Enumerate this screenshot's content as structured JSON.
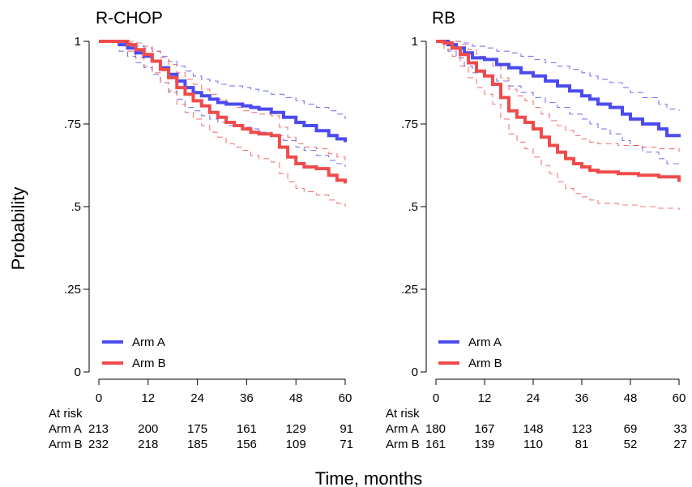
{
  "figure": {
    "ylabel": "Probability",
    "xlabel": "Time, months"
  },
  "chart_data": [
    {
      "type": "line",
      "title": "R-CHOP",
      "xlabel": "Time, months",
      "ylabel": "Probability",
      "xlim": [
        0,
        60
      ],
      "ylim": [
        0,
        1
      ],
      "xticks": [
        0,
        12,
        24,
        36,
        48,
        60
      ],
      "xtick_labels": [
        "0",
        "12",
        "24",
        "36",
        "48",
        "60"
      ],
      "yticks": [
        0,
        0.25,
        0.5,
        0.75,
        1
      ],
      "ytick_labels": [
        "0",
        ".25",
        ".5",
        ".75",
        "1"
      ],
      "grid": false,
      "legend": "bottom-left",
      "series": [
        {
          "name": "Arm A",
          "color": "#4b4bf0",
          "x": [
            0,
            5,
            7,
            9,
            11,
            13,
            15,
            17,
            19,
            21,
            23,
            25,
            27,
            29,
            31,
            33,
            35,
            37,
            39,
            42,
            45,
            48,
            50,
            53,
            56,
            58,
            60
          ],
          "y": [
            1.0,
            0.99,
            0.98,
            0.965,
            0.955,
            0.94,
            0.92,
            0.9,
            0.88,
            0.86,
            0.845,
            0.835,
            0.825,
            0.815,
            0.81,
            0.81,
            0.805,
            0.8,
            0.795,
            0.785,
            0.77,
            0.755,
            0.745,
            0.73,
            0.715,
            0.705,
            0.695
          ],
          "ci_lower": [
            1.0,
            0.97,
            0.955,
            0.935,
            0.92,
            0.9,
            0.875,
            0.85,
            0.825,
            0.8,
            0.79,
            0.775,
            0.765,
            0.755,
            0.745,
            0.745,
            0.74,
            0.735,
            0.725,
            0.715,
            0.7,
            0.68,
            0.67,
            0.655,
            0.64,
            0.63,
            0.62
          ],
          "ci_upper": [
            1.0,
            1.0,
            0.995,
            0.985,
            0.98,
            0.97,
            0.955,
            0.94,
            0.925,
            0.91,
            0.895,
            0.885,
            0.88,
            0.87,
            0.865,
            0.865,
            0.86,
            0.855,
            0.85,
            0.84,
            0.83,
            0.82,
            0.81,
            0.8,
            0.79,
            0.78,
            0.765
          ]
        },
        {
          "name": "Arm B",
          "color": "#f04b4b",
          "x": [
            0,
            5,
            7,
            9,
            11,
            13,
            15,
            17,
            19,
            21,
            23,
            25,
            27,
            29,
            31,
            33,
            35,
            37,
            39,
            42,
            44,
            46,
            48,
            50,
            53,
            56,
            58,
            60
          ],
          "y": [
            1.0,
            1.0,
            0.99,
            0.975,
            0.96,
            0.94,
            0.915,
            0.89,
            0.86,
            0.84,
            0.82,
            0.805,
            0.785,
            0.77,
            0.755,
            0.745,
            0.735,
            0.725,
            0.72,
            0.715,
            0.68,
            0.65,
            0.63,
            0.62,
            0.615,
            0.595,
            0.58,
            0.57
          ],
          "ci_lower": [
            1.0,
            0.99,
            0.97,
            0.95,
            0.925,
            0.905,
            0.875,
            0.845,
            0.81,
            0.785,
            0.765,
            0.745,
            0.725,
            0.71,
            0.69,
            0.68,
            0.67,
            0.655,
            0.645,
            0.635,
            0.6,
            0.575,
            0.555,
            0.545,
            0.535,
            0.52,
            0.51,
            0.5
          ],
          "ci_upper": [
            1.0,
            1.0,
            1.0,
            0.995,
            0.985,
            0.97,
            0.95,
            0.93,
            0.905,
            0.885,
            0.87,
            0.855,
            0.84,
            0.825,
            0.81,
            0.8,
            0.79,
            0.785,
            0.78,
            0.775,
            0.74,
            0.71,
            0.69,
            0.68,
            0.675,
            0.66,
            0.65,
            0.64
          ]
        }
      ],
      "at_risk": {
        "header": "At risk",
        "times": [
          0,
          12,
          24,
          36,
          48,
          60
        ],
        "rows": [
          {
            "label": "Arm A",
            "values": [
              "213",
              "200",
              "175",
              "161",
              "129",
              "91"
            ]
          },
          {
            "label": "Arm B",
            "values": [
              "232",
              "218",
              "185",
              "156",
              "109",
              "71"
            ]
          }
        ]
      }
    },
    {
      "type": "line",
      "title": "RB",
      "xlabel": "Time, months",
      "ylabel": "Probability",
      "xlim": [
        0,
        60
      ],
      "ylim": [
        0,
        1
      ],
      "xticks": [
        0,
        12,
        24,
        36,
        48,
        60
      ],
      "xtick_labels": [
        "0",
        "12",
        "24",
        "36",
        "48",
        "60"
      ],
      "yticks": [
        0,
        0.25,
        0.5,
        0.75,
        1
      ],
      "ytick_labels": [
        "0",
        ".25",
        ".5",
        ".75",
        "1"
      ],
      "grid": false,
      "legend": "bottom-left",
      "series": [
        {
          "name": "Arm A",
          "color": "#4b4bf0",
          "x": [
            0,
            3,
            5,
            7,
            9,
            12,
            15,
            18,
            21,
            24,
            27,
            30,
            33,
            36,
            38,
            40,
            43,
            46,
            48,
            51,
            55,
            57,
            60
          ],
          "y": [
            1.0,
            0.99,
            0.98,
            0.965,
            0.95,
            0.945,
            0.93,
            0.92,
            0.905,
            0.895,
            0.88,
            0.865,
            0.85,
            0.835,
            0.825,
            0.81,
            0.8,
            0.78,
            0.765,
            0.75,
            0.735,
            0.715,
            0.71
          ],
          "ci_lower": [
            1.0,
            0.97,
            0.95,
            0.925,
            0.905,
            0.895,
            0.88,
            0.865,
            0.845,
            0.83,
            0.815,
            0.8,
            0.78,
            0.765,
            0.75,
            0.735,
            0.72,
            0.7,
            0.685,
            0.665,
            0.645,
            0.63,
            0.625
          ],
          "ci_upper": [
            1.0,
            1.0,
            1.0,
            0.995,
            0.985,
            0.98,
            0.97,
            0.965,
            0.955,
            0.945,
            0.935,
            0.925,
            0.915,
            0.905,
            0.895,
            0.885,
            0.875,
            0.86,
            0.845,
            0.83,
            0.81,
            0.795,
            0.79
          ]
        },
        {
          "name": "Arm B",
          "color": "#f04b4b",
          "x": [
            0,
            2,
            4,
            6,
            8,
            10,
            12,
            14,
            16,
            18,
            20,
            22,
            24,
            26,
            28,
            30,
            32,
            34,
            36,
            38,
            40,
            45,
            50,
            55,
            60
          ],
          "y": [
            1.0,
            0.995,
            0.98,
            0.96,
            0.935,
            0.91,
            0.895,
            0.87,
            0.83,
            0.79,
            0.77,
            0.755,
            0.735,
            0.71,
            0.685,
            0.665,
            0.645,
            0.63,
            0.62,
            0.61,
            0.605,
            0.6,
            0.595,
            0.59,
            0.575
          ],
          "ci_lower": [
            1.0,
            0.975,
            0.955,
            0.925,
            0.89,
            0.86,
            0.84,
            0.81,
            0.765,
            0.72,
            0.695,
            0.675,
            0.65,
            0.625,
            0.6,
            0.575,
            0.555,
            0.54,
            0.53,
            0.52,
            0.51,
            0.505,
            0.5,
            0.495,
            0.49
          ],
          "ci_upper": [
            1.0,
            1.0,
            1.0,
            0.99,
            0.975,
            0.955,
            0.945,
            0.925,
            0.89,
            0.855,
            0.835,
            0.82,
            0.8,
            0.78,
            0.76,
            0.745,
            0.73,
            0.715,
            0.705,
            0.695,
            0.69,
            0.685,
            0.68,
            0.675,
            0.665
          ]
        }
      ],
      "at_risk": {
        "header": "At risk",
        "times": [
          0,
          12,
          24,
          36,
          48,
          60
        ],
        "rows": [
          {
            "label": "Arm A",
            "values": [
              "180",
              "167",
              "148",
              "123",
              "69",
              "33"
            ]
          },
          {
            "label": "Arm B",
            "values": [
              "161",
              "139",
              "110",
              "81",
              "52",
              "27"
            ]
          }
        ]
      }
    }
  ]
}
